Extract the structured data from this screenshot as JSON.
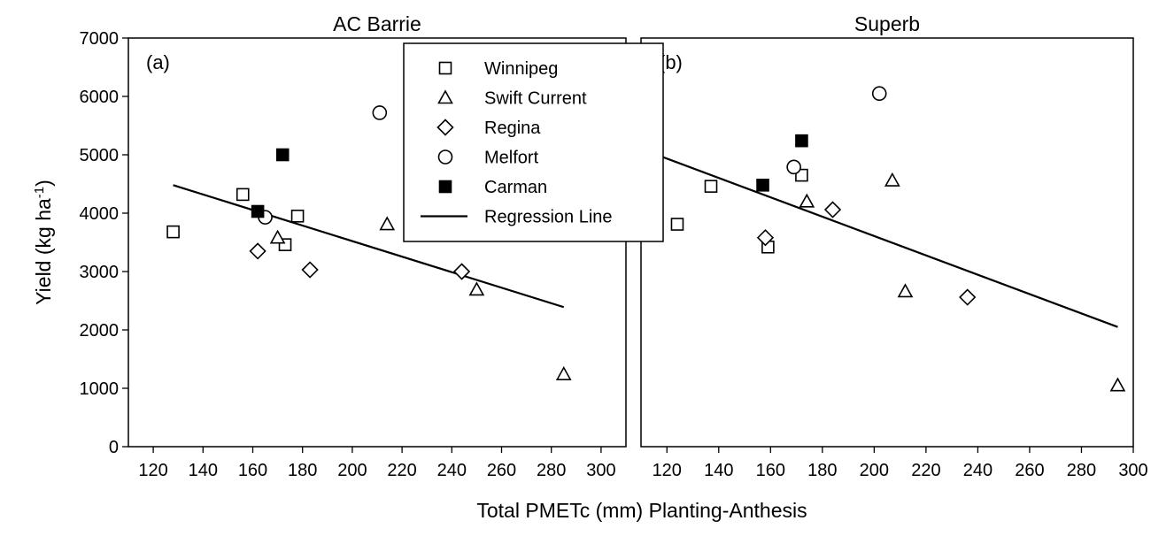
{
  "chart_data": {
    "type": "scatter",
    "xlabel": "Total PMETc (mm) Planting-Anthesis",
    "ylabel_main": "Yield (kg ha",
    "ylabel_sup": "-1",
    "ylabel_close": ")",
    "ylim": [
      0,
      7000
    ],
    "yticks": [
      0,
      1000,
      2000,
      3000,
      4000,
      5000,
      6000,
      7000
    ],
    "legend": {
      "position": "top-center",
      "entries": [
        {
          "label": "Winnipeg",
          "marker": "open-square"
        },
        {
          "label": "Swift Current",
          "marker": "open-triangle"
        },
        {
          "label": "Regina",
          "marker": "open-diamond"
        },
        {
          "label": "Melfort",
          "marker": "open-circle"
        },
        {
          "label": "Carman",
          "marker": "filled-square"
        },
        {
          "label": "Regression Line",
          "marker": "line"
        }
      ]
    },
    "panels": [
      {
        "title": "AC Barrie",
        "tag": "(a)",
        "xlim": [
          110,
          310
        ],
        "xticks": [
          120,
          140,
          160,
          180,
          200,
          220,
          240,
          260,
          280,
          300
        ],
        "series": [
          {
            "name": "Winnipeg",
            "marker": "open-square",
            "points": [
              [
                128,
                3680
              ],
              [
                156,
                4320
              ],
              [
                173,
                3460
              ],
              [
                178,
                3950
              ]
            ]
          },
          {
            "name": "Swift Current",
            "marker": "open-triangle",
            "points": [
              [
                170,
                3580
              ],
              [
                214,
                3810
              ],
              [
                250,
                2690
              ],
              [
                285,
                1240
              ]
            ]
          },
          {
            "name": "Regina",
            "marker": "open-diamond",
            "points": [
              [
                162,
                3350
              ],
              [
                183,
                3030
              ],
              [
                244,
                3000
              ]
            ]
          },
          {
            "name": "Melfort",
            "marker": "open-circle",
            "points": [
              [
                165,
                3930
              ],
              [
                211,
                5720
              ]
            ]
          },
          {
            "name": "Carman",
            "marker": "filled-square",
            "points": [
              [
                162,
                4030
              ],
              [
                172,
                5000
              ]
            ]
          }
        ],
        "regression": {
          "x": [
            128,
            285
          ],
          "y": [
            4480,
            2390
          ]
        }
      },
      {
        "title": "Superb",
        "tag": "(b)",
        "xlim": [
          110,
          300
        ],
        "xticks": [
          120,
          140,
          160,
          180,
          200,
          220,
          240,
          260,
          280,
          300
        ],
        "series": [
          {
            "name": "Winnipeg",
            "marker": "open-square",
            "points": [
              [
                124,
                3810
              ],
              [
                137,
                4460
              ],
              [
                159,
                3420
              ],
              [
                172,
                4650
              ]
            ]
          },
          {
            "name": "Swift Current",
            "marker": "open-triangle",
            "points": [
              [
                174,
                4200
              ],
              [
                207,
                4560
              ],
              [
                212,
                2660
              ],
              [
                294,
                1050
              ]
            ]
          },
          {
            "name": "Regina",
            "marker": "open-diamond",
            "points": [
              [
                158,
                3580
              ],
              [
                184,
                4060
              ],
              [
                236,
                2560
              ]
            ]
          },
          {
            "name": "Melfort",
            "marker": "open-circle",
            "points": [
              [
                169,
                4790
              ],
              [
                202,
                6050
              ]
            ]
          },
          {
            "name": "Carman",
            "marker": "filled-square",
            "points": [
              [
                157,
                4480
              ],
              [
                172,
                5240
              ]
            ]
          }
        ],
        "regression": {
          "x": [
            110,
            294
          ],
          "y": [
            5100,
            2050
          ]
        }
      }
    ]
  }
}
